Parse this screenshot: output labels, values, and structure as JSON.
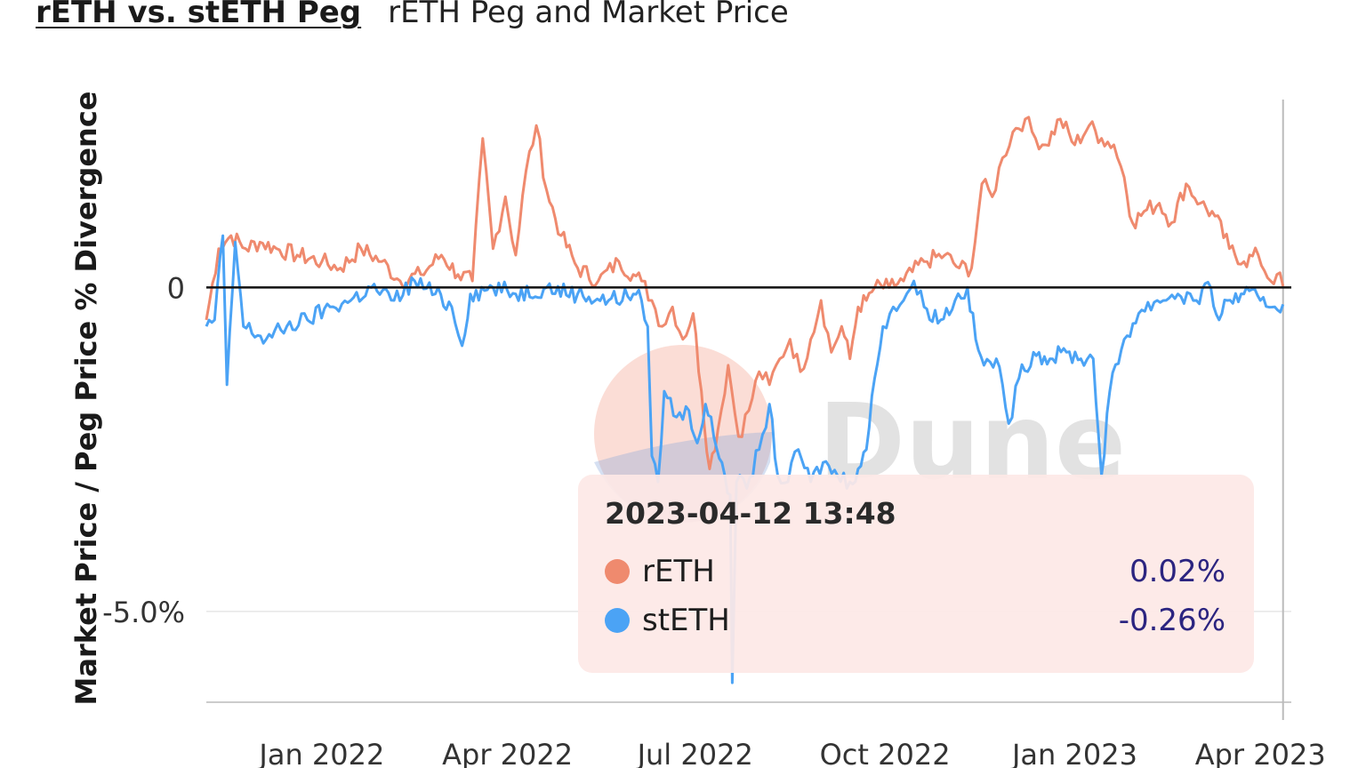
{
  "header": {
    "title": "rETH vs. stETH Peg",
    "subtitle": "rETH Peg and Market Price"
  },
  "watermark": "Dune",
  "tooltip": {
    "timestamp": "2023-04-12 13:48",
    "rows": [
      {
        "name": "rETH",
        "value": "0.02%",
        "color": "#ef8a6e"
      },
      {
        "name": "stETH",
        "value": "-0.26%",
        "color": "#4ba3f5"
      }
    ]
  },
  "chart_data": {
    "type": "line",
    "ylabel": "Market Price / Peg Price % Divergence",
    "xlabel": "",
    "x_ticks": [
      "Jan 2022",
      "Apr 2022",
      "Jul 2022",
      "Oct 2022",
      "Jan 2023",
      "Apr 2023"
    ],
    "y_ticks": [
      {
        "value": 0,
        "label": "0"
      },
      {
        "value": -5.0,
        "label": "-5.0%"
      }
    ],
    "ylim": [
      -6.4,
      2.9
    ],
    "xlim": [
      "2021-11-06",
      "2023-04-16"
    ],
    "zero_line": true,
    "grid": true,
    "crosshair_date": "2023-04-12",
    "series": [
      {
        "name": "rETH",
        "color": "#ef8a6e",
        "points": [
          [
            "2021-11-06",
            -0.5
          ],
          [
            "2021-11-12",
            0.6
          ],
          [
            "2021-11-18",
            0.8
          ],
          [
            "2021-11-25",
            0.6
          ],
          [
            "2021-12-02",
            0.7
          ],
          [
            "2021-12-10",
            0.6
          ],
          [
            "2021-12-20",
            0.5
          ],
          [
            "2022-01-01",
            0.4
          ],
          [
            "2022-01-10",
            0.3
          ],
          [
            "2022-01-20",
            0.6
          ],
          [
            "2022-01-30",
            0.4
          ],
          [
            "2022-02-08",
            0.1
          ],
          [
            "2022-02-18",
            0.2
          ],
          [
            "2022-02-28",
            0.5
          ],
          [
            "2022-03-08",
            0.2
          ],
          [
            "2022-03-15",
            0.1
          ],
          [
            "2022-03-20",
            2.3
          ],
          [
            "2022-03-25",
            0.6
          ],
          [
            "2022-03-31",
            1.4
          ],
          [
            "2022-04-05",
            0.5
          ],
          [
            "2022-04-10",
            1.8
          ],
          [
            "2022-04-15",
            2.5
          ],
          [
            "2022-04-20",
            1.5
          ],
          [
            "2022-04-27",
            0.8
          ],
          [
            "2022-05-05",
            0.3
          ],
          [
            "2022-05-15",
            0.1
          ],
          [
            "2022-05-25",
            0.4
          ],
          [
            "2022-06-01",
            0.2
          ],
          [
            "2022-06-05",
            0.1
          ],
          [
            "2022-06-10",
            -0.2
          ],
          [
            "2022-06-15",
            -0.6
          ],
          [
            "2022-06-20",
            -0.3
          ],
          [
            "2022-06-25",
            -0.8
          ],
          [
            "2022-06-30",
            -0.4
          ],
          [
            "2022-07-04",
            -1.6
          ],
          [
            "2022-07-08",
            -2.8
          ],
          [
            "2022-07-12",
            -2.2
          ],
          [
            "2022-07-17",
            -1.2
          ],
          [
            "2022-07-22",
            -2.3
          ],
          [
            "2022-07-27",
            -1.9
          ],
          [
            "2022-08-01",
            -1.3
          ],
          [
            "2022-08-06",
            -1.5
          ],
          [
            "2022-08-11",
            -1.1
          ],
          [
            "2022-08-16",
            -0.8
          ],
          [
            "2022-08-21",
            -1.3
          ],
          [
            "2022-08-26",
            -0.8
          ],
          [
            "2022-08-31",
            -0.2
          ],
          [
            "2022-09-05",
            -1.0
          ],
          [
            "2022-09-10",
            -0.6
          ],
          [
            "2022-09-14",
            -1.1
          ],
          [
            "2022-09-18",
            -0.3
          ],
          [
            "2022-09-22",
            -0.2
          ],
          [
            "2022-09-26",
            0.0
          ],
          [
            "2022-10-03",
            0.0
          ],
          [
            "2022-10-10",
            0.1
          ],
          [
            "2022-10-20",
            0.4
          ],
          [
            "2022-10-30",
            0.5
          ],
          [
            "2022-11-06",
            0.3
          ],
          [
            "2022-11-12",
            0.3
          ],
          [
            "2022-11-17",
            1.6
          ],
          [
            "2022-11-22",
            1.4
          ],
          [
            "2022-11-27",
            2.0
          ],
          [
            "2022-12-02",
            2.4
          ],
          [
            "2022-12-08",
            2.6
          ],
          [
            "2022-12-13",
            2.3
          ],
          [
            "2022-12-18",
            2.2
          ],
          [
            "2022-12-25",
            2.6
          ],
          [
            "2023-01-01",
            2.2
          ],
          [
            "2023-01-08",
            2.5
          ],
          [
            "2023-01-14",
            2.3
          ],
          [
            "2023-01-20",
            2.2
          ],
          [
            "2023-01-25",
            1.7
          ],
          [
            "2023-01-29",
            1.0
          ],
          [
            "2023-02-05",
            1.2
          ],
          [
            "2023-02-11",
            1.3
          ],
          [
            "2023-02-17",
            1.0
          ],
          [
            "2023-02-24",
            1.6
          ],
          [
            "2023-03-03",
            1.3
          ],
          [
            "2023-03-10",
            1.1
          ],
          [
            "2023-03-17",
            0.6
          ],
          [
            "2023-03-24",
            0.4
          ],
          [
            "2023-03-31",
            0.5
          ],
          [
            "2023-04-06",
            0.1
          ],
          [
            "2023-04-09",
            0.2
          ],
          [
            "2023-04-12",
            0.02
          ]
        ]
      },
      {
        "name": "stETH",
        "color": "#4ba3f5",
        "points": [
          [
            "2021-11-06",
            -0.6
          ],
          [
            "2021-11-10",
            -0.5
          ],
          [
            "2021-11-14",
            0.8
          ],
          [
            "2021-11-16",
            -1.5
          ],
          [
            "2021-11-20",
            0.7
          ],
          [
            "2021-11-24",
            -0.6
          ],
          [
            "2021-12-05",
            -0.8
          ],
          [
            "2021-12-15",
            -0.6
          ],
          [
            "2021-12-25",
            -0.5
          ],
          [
            "2022-01-05",
            -0.3
          ],
          [
            "2022-01-15",
            -0.2
          ],
          [
            "2022-01-25",
            0.0
          ],
          [
            "2022-02-05",
            -0.2
          ],
          [
            "2022-02-15",
            0.1
          ],
          [
            "2022-02-25",
            -0.1
          ],
          [
            "2022-03-05",
            -0.3
          ],
          [
            "2022-03-10",
            -0.9
          ],
          [
            "2022-03-14",
            -0.1
          ],
          [
            "2022-03-25",
            0.0
          ],
          [
            "2022-04-05",
            -0.1
          ],
          [
            "2022-04-20",
            0.0
          ],
          [
            "2022-05-05",
            -0.1
          ],
          [
            "2022-05-20",
            -0.2
          ],
          [
            "2022-06-01",
            -0.1
          ],
          [
            "2022-06-05",
            -0.2
          ],
          [
            "2022-06-08",
            -0.6
          ],
          [
            "2022-06-10",
            -2.6
          ],
          [
            "2022-06-13",
            -3.0
          ],
          [
            "2022-06-16",
            -1.6
          ],
          [
            "2022-06-22",
            -2.0
          ],
          [
            "2022-06-28",
            -1.9
          ],
          [
            "2022-07-02",
            -2.4
          ],
          [
            "2022-07-06",
            -1.8
          ],
          [
            "2022-07-10",
            -2.3
          ],
          [
            "2022-07-14",
            -2.7
          ],
          [
            "2022-07-18",
            -3.2
          ],
          [
            "2022-07-19",
            -6.1
          ],
          [
            "2022-07-21",
            -3.0
          ],
          [
            "2022-07-26",
            -3.1
          ],
          [
            "2022-08-01",
            -2.5
          ],
          [
            "2022-08-06",
            -1.8
          ],
          [
            "2022-08-10",
            -2.9
          ],
          [
            "2022-08-15",
            -3.0
          ],
          [
            "2022-08-20",
            -2.5
          ],
          [
            "2022-08-26",
            -3.0
          ],
          [
            "2022-09-01",
            -2.7
          ],
          [
            "2022-09-08",
            -2.9
          ],
          [
            "2022-09-14",
            -3.0
          ],
          [
            "2022-09-18",
            -2.8
          ],
          [
            "2022-09-22",
            -2.5
          ],
          [
            "2022-09-26",
            -1.4
          ],
          [
            "2022-09-30",
            -0.6
          ],
          [
            "2022-10-05",
            -0.3
          ],
          [
            "2022-10-10",
            -0.2
          ],
          [
            "2022-10-15",
            0.1
          ],
          [
            "2022-10-20",
            -0.3
          ],
          [
            "2022-10-28",
            -0.5
          ],
          [
            "2022-11-04",
            -0.2
          ],
          [
            "2022-11-10",
            0.0
          ],
          [
            "2022-11-14",
            -0.8
          ],
          [
            "2022-11-18",
            -1.2
          ],
          [
            "2022-11-24",
            -1.1
          ],
          [
            "2022-11-30",
            -2.1
          ],
          [
            "2022-12-05",
            -1.4
          ],
          [
            "2022-12-12",
            -1.0
          ],
          [
            "2022-12-20",
            -1.1
          ],
          [
            "2022-12-28",
            -1.0
          ],
          [
            "2023-01-04",
            -1.1
          ],
          [
            "2023-01-10",
            -1.1
          ],
          [
            "2023-01-14",
            -2.9
          ],
          [
            "2023-01-18",
            -1.6
          ],
          [
            "2023-01-25",
            -0.8
          ],
          [
            "2023-02-01",
            -0.4
          ],
          [
            "2023-02-10",
            -0.2
          ],
          [
            "2023-02-20",
            -0.1
          ],
          [
            "2023-03-01",
            -0.2
          ],
          [
            "2023-03-08",
            0.0
          ],
          [
            "2023-03-12",
            -0.5
          ],
          [
            "2023-03-16",
            -0.2
          ],
          [
            "2023-03-24",
            -0.1
          ],
          [
            "2023-04-01",
            -0.2
          ],
          [
            "2023-04-08",
            -0.3
          ],
          [
            "2023-04-12",
            -0.26
          ]
        ]
      }
    ]
  }
}
